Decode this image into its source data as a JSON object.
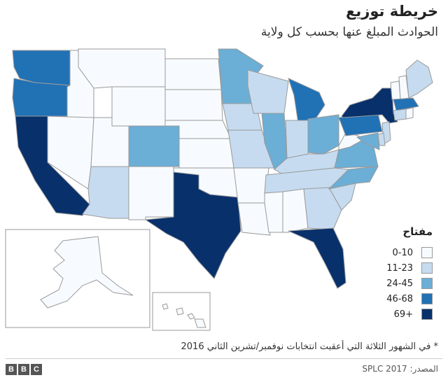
{
  "header": {
    "title": "خريطة توزيع",
    "subtitle": "الحوادث المبلغ عنها بحسب كل ولاية"
  },
  "legend": {
    "title": "مفتاح",
    "items": [
      {
        "label": "0-10",
        "color": "#f7fbff"
      },
      {
        "label": "11-23",
        "color": "#c6dbef"
      },
      {
        "label": "24-45",
        "color": "#6baed6"
      },
      {
        "label": "46-68",
        "color": "#2171b5"
      },
      {
        "label": "69+",
        "color": "#08306b"
      }
    ]
  },
  "footnote": "* في الشهور الثلاثة التي أعقبت انتخابات نوفمبر/تشرين الثاني 2016",
  "source": "المصدر:  SPLC 2017",
  "logo": [
    "B",
    "B",
    "C"
  ],
  "map_data": {
    "bins": [
      "0-10",
      "11-23",
      "24-45",
      "46-68",
      "69+"
    ],
    "states": {
      "WA": "46-68",
      "OR": "46-68",
      "CA": "69+",
      "ID": "0-10",
      "NV": "0-10",
      "MT": "0-10",
      "WY": "0-10",
      "UT": "0-10",
      "AZ": "11-23",
      "CO": "24-45",
      "NM": "0-10",
      "ND": "0-10",
      "SD": "0-10",
      "NE": "0-10",
      "KS": "0-10",
      "OK": "0-10",
      "TX": "69+",
      "MN": "24-45",
      "IA": "11-23",
      "MO": "11-23",
      "AR": "0-10",
      "LA": "0-10",
      "WI": "11-23",
      "IL": "24-45",
      "MI": "46-68",
      "IN": "11-23",
      "OH": "24-45",
      "KY": "11-23",
      "TN": "11-23",
      "MS": "0-10",
      "AL": "0-10",
      "GA": "11-23",
      "FL": "69+",
      "SC": "11-23",
      "NC": "24-45",
      "VA": "24-45",
      "WV": "0-10",
      "PA": "46-68",
      "NY": "69+",
      "VT": "0-10",
      "NH": "0-10",
      "ME": "11-23",
      "MA": "46-68",
      "CT": "11-23",
      "RI": "0-10",
      "NJ": "11-23",
      "DE": "11-23",
      "MD": "24-45",
      "AK": "0-10",
      "HI": "0-10"
    }
  }
}
